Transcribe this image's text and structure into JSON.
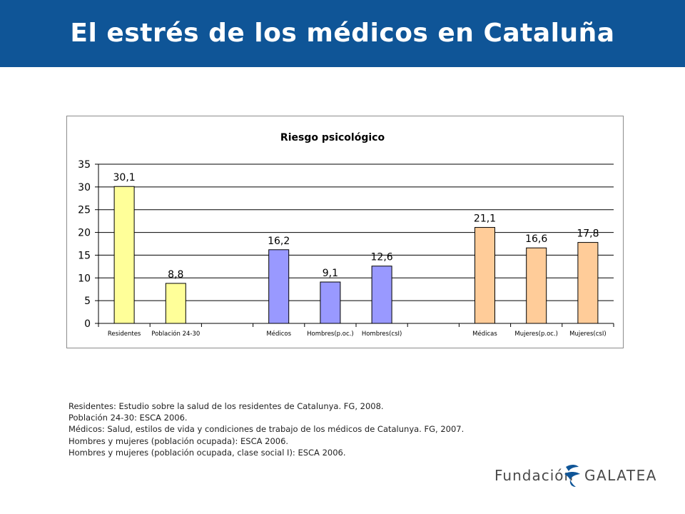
{
  "header": {
    "title": "El estrés de los médicos en Cataluña",
    "bg_color": "#0f5597"
  },
  "chart_data": {
    "type": "bar",
    "title": "Riesgo psicológico",
    "xlabel": "",
    "ylabel": "",
    "ylim": [
      0,
      35
    ],
    "yticks": [
      0,
      5,
      10,
      15,
      20,
      25,
      30,
      35
    ],
    "grid": true,
    "legend": "none",
    "groups": [
      {
        "color": "#ffff99",
        "categories": [
          "Residentes",
          "Población 24-30"
        ],
        "values": [
          30.1,
          8.8
        ],
        "labels": [
          "30,1",
          "8,8"
        ]
      },
      {
        "color": "#9999ff",
        "categories": [
          "Médicos",
          "Hombres(p.oc.)",
          "Hombres(csI)"
        ],
        "values": [
          16.2,
          9.1,
          12.6
        ],
        "labels": [
          "16,2",
          "9,1",
          "12,6"
        ]
      },
      {
        "color": "#ffcc99",
        "categories": [
          "Médicas",
          "Mujeres(p.oc.)",
          "Mujeres(csI)"
        ],
        "values": [
          21.1,
          16.6,
          17.8
        ],
        "labels": [
          "21,1",
          "16,6",
          "17,8"
        ]
      }
    ]
  },
  "notes": [
    "Residentes: Estudio sobre la salud de los residentes de Catalunya. FG, 2008.",
    "Población 24-30: ESCA 2006.",
    "Médicos: Salud, estilos de vida y condiciones de trabajo de los médicos de Catalunya. FG, 2007.",
    "Hombres y  mujeres (población ocupada): ESCA 2006.",
    "Hombres y mujeres (población ocupada, clase social I): ESCA 2006."
  ],
  "logo": {
    "left_text": "Fundación",
    "right_text": "GALATEA",
    "color": "#0f5597"
  }
}
